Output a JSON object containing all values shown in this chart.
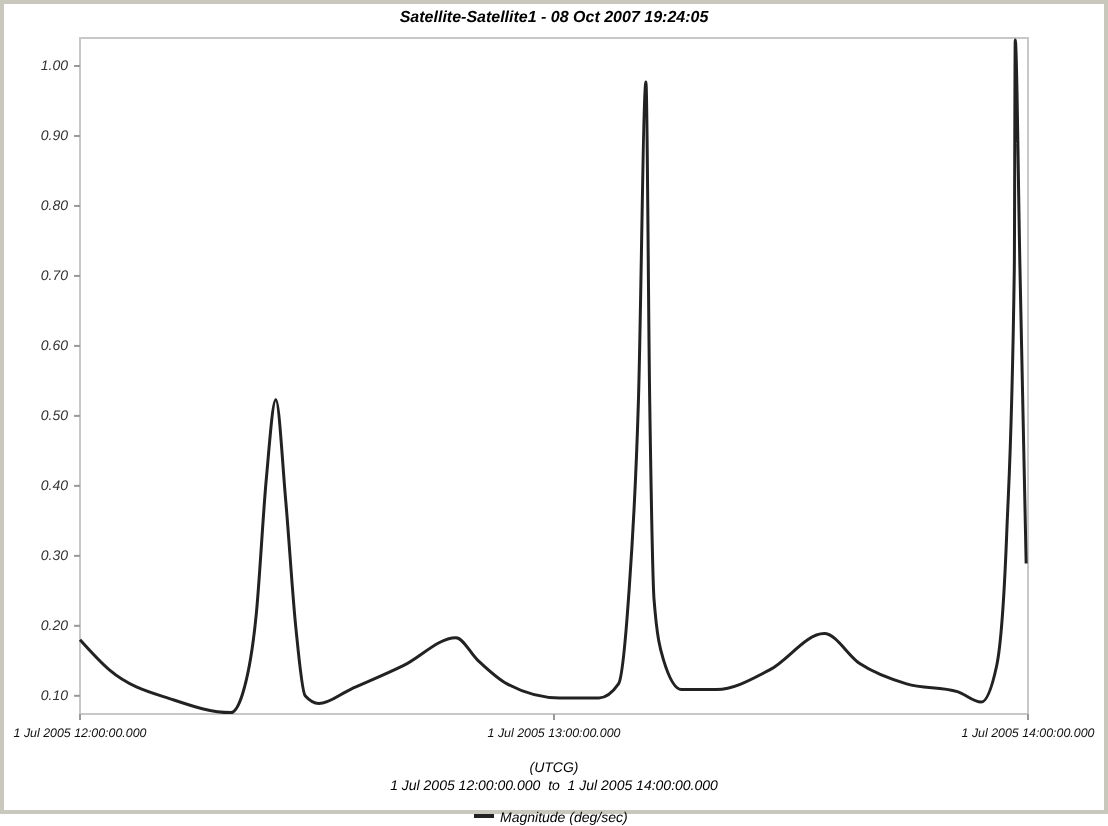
{
  "chart_data": {
    "type": "line",
    "title": "Satellite-Satellite1 - 08 Oct 2007 19:24:05",
    "xlabel": "(UTCG)",
    "annotations": [
      "1 Jul 2005 12:00:00.000  to  1 Jul 2005 14:00:00.000"
    ],
    "x": [
      "2005-07-01T12:00:00",
      "2005-07-01T12:03:43",
      "2005-07-01T12:11:53",
      "2005-07-01T12:19:05",
      "2005-07-01T12:20:35",
      "2005-07-01T12:22:19",
      "2005-07-01T12:23:35",
      "2005-07-01T12:24:47",
      "2005-07-01T12:26:02",
      "2005-07-01T12:27:18",
      "2005-07-01T12:28:30",
      "2005-07-01T12:30:14",
      "2005-07-01T12:34:12",
      "2005-07-01T12:40:55",
      "2005-07-01T12:47:35",
      "2005-07-01T12:50:20",
      "2005-07-01T12:54:04",
      "2005-07-01T13:00:43",
      "2005-07-01T13:05:42",
      "2005-07-01T13:08:10",
      "2005-07-01T13:09:25",
      "2005-07-01T13:10:41",
      "2005-07-01T13:11:38",
      "2005-07-01T13:12:07",
      "2005-07-01T13:12:40",
      "2005-07-01T13:13:52",
      "2005-07-01T13:16:08",
      "2005-07-01T13:20:35",
      "2005-07-01T13:27:18",
      "2005-07-01T13:34:12",
      "2005-07-01T13:38:42",
      "2005-07-01T13:44:38",
      "2005-07-01T13:51:04",
      "2005-07-01T13:54:04",
      "2005-07-01T13:56:02",
      "2005-07-01T13:57:18",
      "2005-07-01T13:58:16",
      "2005-07-01T13:58:23",
      "2005-07-01T13:58:59",
      "2005-07-01T13:59:46"
    ],
    "series": [
      {
        "name": "Magnitude (deg/sec)",
        "color": "#222222",
        "values": [
          0.18,
          0.137,
          0.094,
          0.076,
          0.103,
          0.217,
          0.41,
          0.523,
          0.38,
          0.2,
          0.1,
          0.089,
          0.109,
          0.143,
          0.183,
          0.151,
          0.117,
          0.097,
          0.097,
          0.117,
          0.237,
          0.52,
          0.977,
          0.52,
          0.237,
          0.151,
          0.109,
          0.109,
          0.137,
          0.189,
          0.146,
          0.117,
          0.106,
          0.091,
          0.143,
          0.33,
          0.71,
          1.037,
          0.71,
          0.289
        ]
      }
    ],
    "xlim": [
      "2005-07-01T12:00",
      "2005-07-01T14:00"
    ],
    "xticks": [
      {
        "value": "2005-07-01T12:00",
        "label": "1 Jul 2005 12:00:00.000"
      },
      {
        "value": "2005-07-01T13:00",
        "label": "1 Jul 2005 13:00:00.000"
      },
      {
        "value": "2005-07-01T14:00",
        "label": "1 Jul 2005 14:00:00.000"
      }
    ],
    "ylim": [
      0.074,
      1.04
    ],
    "yticks": [
      {
        "value": 0.1,
        "label": "0.10"
      },
      {
        "value": 0.2,
        "label": "0.20"
      },
      {
        "value": 0.3,
        "label": "0.30"
      },
      {
        "value": 0.4,
        "label": "0.40"
      },
      {
        "value": 0.5,
        "label": "0.50"
      },
      {
        "value": 0.6,
        "label": "0.60"
      },
      {
        "value": 0.7,
        "label": "0.70"
      },
      {
        "value": 0.8,
        "label": "0.80"
      },
      {
        "value": 0.9,
        "label": "0.90"
      },
      {
        "value": 1.0,
        "label": "1.00"
      }
    ],
    "grid": false,
    "legend": "bottom",
    "marker": "none",
    "line_style": "solid"
  }
}
